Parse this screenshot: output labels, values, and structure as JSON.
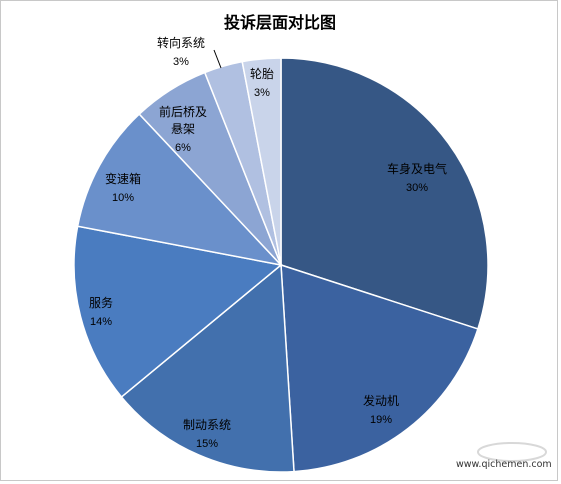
{
  "chart_data": {
    "type": "pie",
    "title": "投诉层面对比图",
    "categories": [
      "车身及电气",
      "发动机",
      "制动系统",
      "服务",
      "变速箱",
      "前后桥及悬架",
      "转向系统",
      "轮胎"
    ],
    "values": [
      30,
      19,
      15,
      14,
      10,
      6,
      3,
      3
    ],
    "data_labels": [
      "30%",
      "19%",
      "15%",
      "14%",
      "10%",
      "6%",
      "3%",
      "3%"
    ],
    "colors": [
      "#365785",
      "#3b62a0",
      "#4270ad",
      "#4a7cc0",
      "#6a90cb",
      "#8ca5d3",
      "#b0c0e1",
      "#c9d4ea"
    ],
    "start": "top",
    "direction": "clockwise",
    "legend": "none",
    "label_color": "#000000",
    "slice_border_color": "#ffffff"
  },
  "watermark": {
    "text": "www.qichemen.com"
  }
}
